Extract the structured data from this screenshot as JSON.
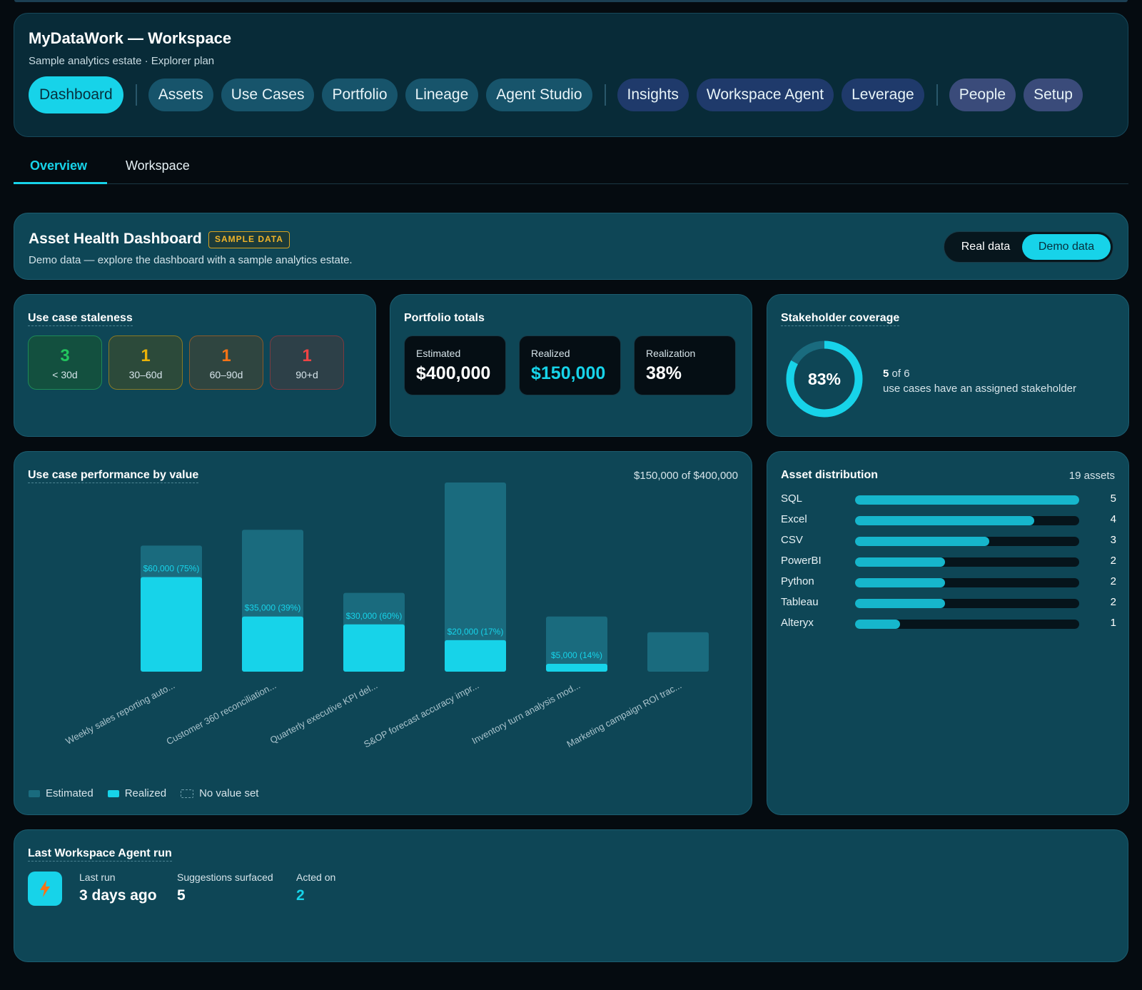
{
  "header": {
    "title": "MyDataWork — Workspace",
    "subtitle": "Sample analytics estate · Explorer plan",
    "nav": [
      "Dashboard",
      "Assets",
      "Use Cases",
      "Portfolio",
      "Lineage",
      "Agent Studio",
      "Insights",
      "Workspace Agent",
      "Leverage",
      "People",
      "Setup"
    ]
  },
  "tabs": {
    "overview": "Overview",
    "workspace": "Workspace"
  },
  "dashboard": {
    "title": "Asset Health Dashboard",
    "badge": "SAMPLE DATA",
    "subtitle": "Demo data — explore the dashboard with a sample analytics estate.",
    "toggle_real": "Real data",
    "toggle_demo": "Demo data"
  },
  "staleness": {
    "title": "Use case staleness",
    "buckets": [
      {
        "count": "3",
        "label": "< 30d",
        "color": "#22c55e"
      },
      {
        "count": "1",
        "label": "30–60d",
        "color": "#eab308"
      },
      {
        "count": "1",
        "label": "60–90d",
        "color": "#f97316"
      },
      {
        "count": "1",
        "label": "90+d",
        "color": "#ef4444"
      }
    ]
  },
  "portfolio": {
    "title": "Portfolio totals",
    "estimated_label": "Estimated",
    "estimated_value": "$400,000",
    "realized_label": "Realized",
    "realized_value": "$150,000",
    "realization_label": "Realization",
    "realization_value": "38%"
  },
  "stakeholder": {
    "title": "Stakeholder coverage",
    "percent_label": "83%",
    "percent": 0.83,
    "count": "5",
    "of_text": "of 6",
    "desc": "use cases have an assigned stakeholder"
  },
  "performance": {
    "title": "Use case performance by value",
    "summary": "$150,000 of $400,000",
    "legend": {
      "estimated": "Estimated",
      "realized": "Realized",
      "novalue": "No value set"
    }
  },
  "chart_data": {
    "type": "bar",
    "categories": [
      "Weekly sales reporting auto...",
      "Customer 360 reconciliation...",
      "Quarterly executive KPI del...",
      "S&OP forecast accuracy impr...",
      "Inventory turn analysis mod...",
      "Marketing campaign ROI trac..."
    ],
    "series": [
      {
        "name": "Estimated",
        "values": [
          80000,
          90000,
          50000,
          120000,
          35000,
          25000
        ]
      },
      {
        "name": "Realized",
        "values": [
          60000,
          35000,
          30000,
          20000,
          5000,
          0
        ]
      }
    ],
    "data_labels": [
      "$60,000 (75%)",
      "$35,000 (39%)",
      "$30,000 (60%)",
      "$20,000 (17%)",
      "$5,000 (14%)",
      ""
    ],
    "ylim": [
      0,
      120000
    ],
    "colors": {
      "estimated": "#1a6b7e",
      "realized": "#17d3e9"
    }
  },
  "distribution": {
    "title": "Asset distribution",
    "total": "19 assets",
    "max": 5,
    "items": [
      {
        "label": "SQL",
        "count": 5
      },
      {
        "label": "Excel",
        "count": 4
      },
      {
        "label": "CSV",
        "count": 3
      },
      {
        "label": "PowerBI",
        "count": 2
      },
      {
        "label": "Python",
        "count": 2
      },
      {
        "label": "Tableau",
        "count": 2
      },
      {
        "label": "Alteryx",
        "count": 1
      }
    ]
  },
  "agent": {
    "title": "Last Workspace Agent run",
    "last_run_label": "Last run",
    "last_run_value": "3 days ago",
    "suggestions_label": "Suggestions surfaced",
    "suggestions_value": "5",
    "acted_label": "Acted on",
    "acted_value": "2",
    "icon": "bolt-icon"
  }
}
